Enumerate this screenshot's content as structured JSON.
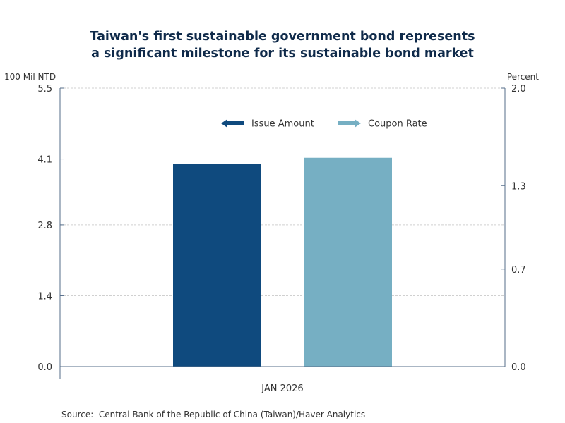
{
  "title": {
    "line1": "Taiwan's first sustainable government bond represents",
    "line2": "a significant milestone for its sustainable bond market"
  },
  "source": "Source:  Central Bank of the Republic of China (Taiwan)/Haver Analytics",
  "chart_data": {
    "type": "bar",
    "categories": [
      "JAN 2026"
    ],
    "series": [
      {
        "name": "Issue Amount",
        "axis": "left",
        "values": [
          4.0
        ],
        "color": "#0f4a7e"
      },
      {
        "name": "Coupon Rate",
        "axis": "right",
        "values": [
          1.5
        ],
        "color": "#76afc3"
      }
    ],
    "left_axis": {
      "label": "100 Mil NTD",
      "ylim": [
        0,
        5.5
      ],
      "ticks": [
        "0.0",
        "1.4",
        "2.8",
        "4.1",
        "5.5"
      ]
    },
    "right_axis": {
      "label": "Percent",
      "ylim": [
        0,
        2.0
      ],
      "ticks": [
        "0.0",
        "0.7",
        "1.3",
        "2.0"
      ]
    },
    "grid": true,
    "legend_position": "top-center"
  }
}
